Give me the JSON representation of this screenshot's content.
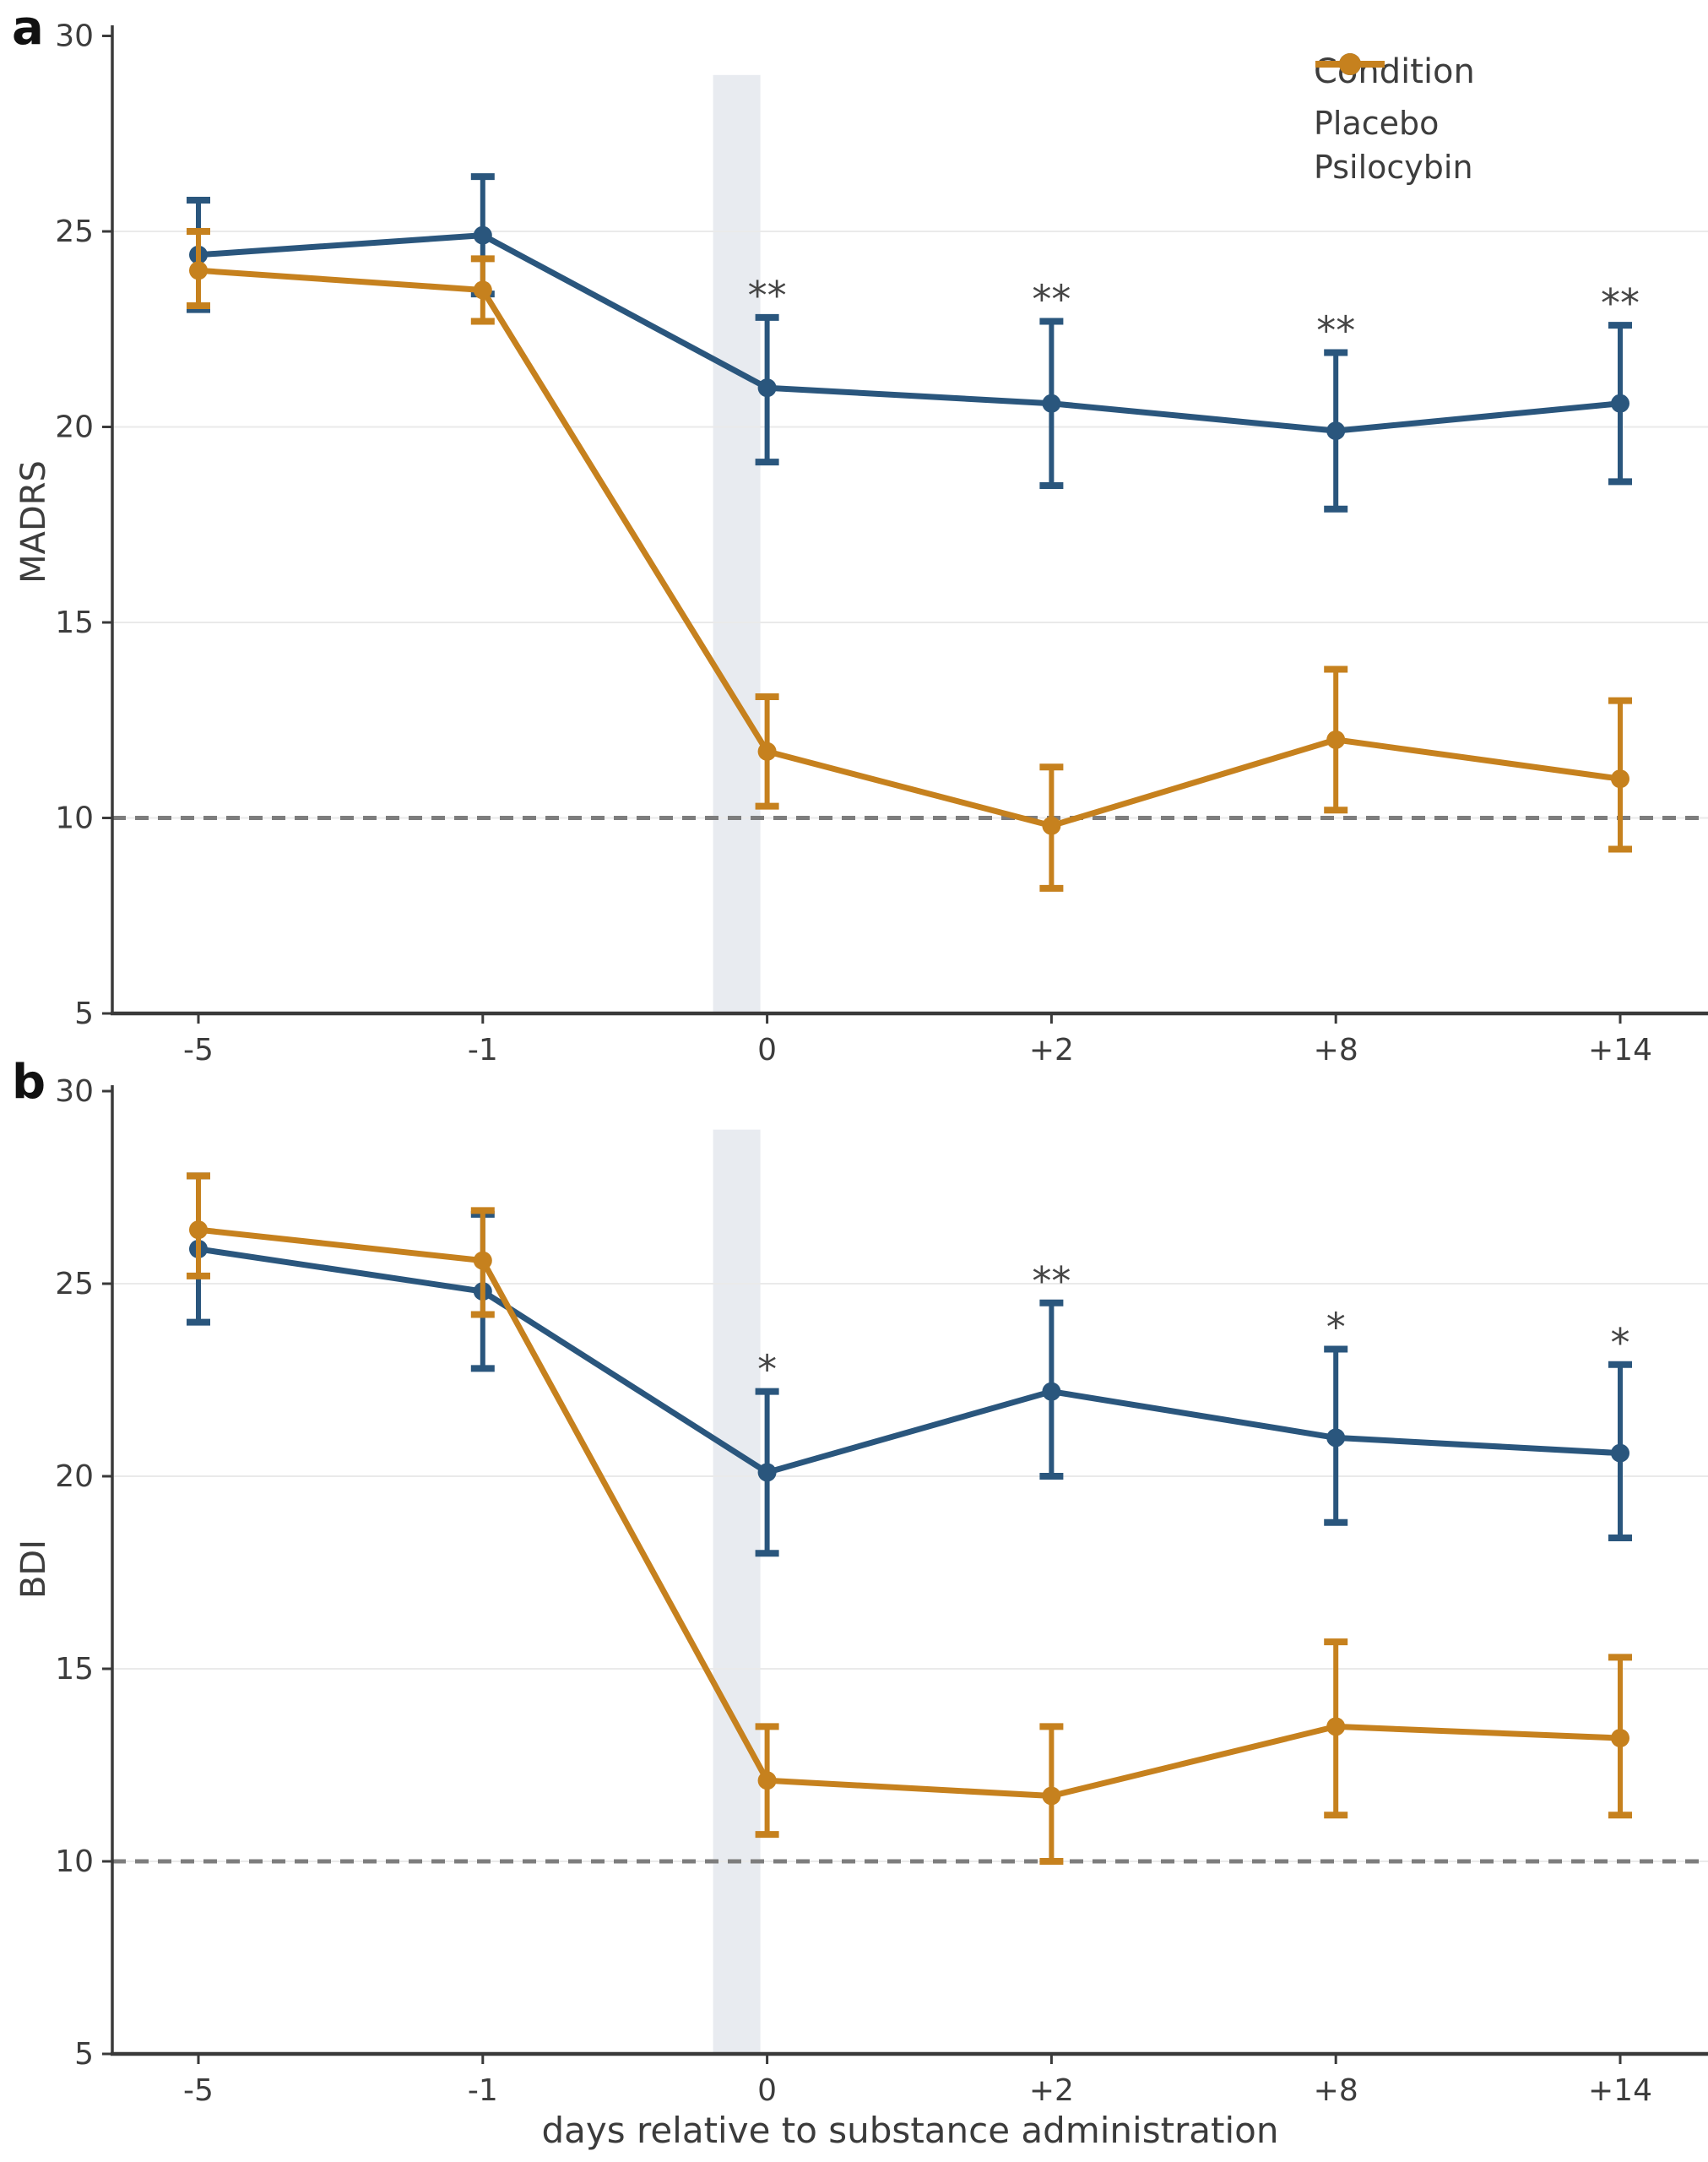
{
  "figure": {
    "panel_a_label": "a",
    "panel_b_label": "b"
  },
  "legend": {
    "title": "Condition",
    "items": [
      {
        "label": "Placebo"
      },
      {
        "label": "Psilocybin"
      }
    ]
  },
  "xaxis_title": "days relative to substance administration",
  "colors": {
    "placebo": "#2a567d",
    "psilocybin": "#c6811e",
    "admin_band": "#e8ebf0",
    "gridline": "#eaeaea",
    "reference_line": "#7d7d7d",
    "axis": "#3a3a3a",
    "tick_label": "#3d3d3d",
    "significance": "#454545"
  },
  "chart_data": [
    {
      "type": "line",
      "panel": "a",
      "ylabel": "MADRS",
      "xlabel": "",
      "categories": [
        "-5",
        "-1",
        "0",
        "+2",
        "+8",
        "+14"
      ],
      "ylim": [
        5,
        30
      ],
      "yticks": [
        30,
        25,
        20,
        15,
        10,
        5
      ],
      "gridlines_at": [
        25,
        20,
        15,
        10
      ],
      "reference_line_y": 10,
      "admin_band_before": "0",
      "legend_position": "top-right",
      "series": [
        {
          "name": "Placebo",
          "color": "#2a567d",
          "values": [
            24.4,
            24.9,
            21.0,
            20.6,
            19.9,
            20.6
          ],
          "ci_low": [
            23.0,
            23.4,
            19.1,
            18.5,
            17.9,
            18.6
          ],
          "ci_high": [
            25.8,
            26.4,
            22.8,
            22.7,
            21.9,
            22.6
          ]
        },
        {
          "name": "Psilocybin",
          "color": "#c6811e",
          "values": [
            24.0,
            23.5,
            11.7,
            9.8,
            12.0,
            11.0
          ],
          "ci_low": [
            23.1,
            22.7,
            10.3,
            8.2,
            10.2,
            9.2
          ],
          "ci_high": [
            25.0,
            24.3,
            13.1,
            11.3,
            13.8,
            13.0
          ]
        }
      ],
      "significance": [
        "",
        "",
        "**",
        "**",
        "**",
        "**"
      ]
    },
    {
      "type": "line",
      "panel": "b",
      "ylabel": "BDI",
      "xlabel": "days relative to substance administration",
      "categories": [
        "-5",
        "-1",
        "0",
        "+2",
        "+8",
        "+14"
      ],
      "ylim": [
        5,
        30
      ],
      "yticks": [
        30,
        25,
        20,
        15,
        10,
        5
      ],
      "gridlines_at": [
        25,
        20,
        15,
        10
      ],
      "reference_line_y": 10,
      "admin_band_before": "0",
      "series": [
        {
          "name": "Placebo",
          "color": "#2a567d",
          "values": [
            25.9,
            24.8,
            20.1,
            22.2,
            21.0,
            20.6
          ],
          "ci_low": [
            24.0,
            22.8,
            18.0,
            20.0,
            18.8,
            18.4
          ],
          "ci_high": [
            27.8,
            26.8,
            22.2,
            24.5,
            23.3,
            22.9
          ]
        },
        {
          "name": "Psilocybin",
          "color": "#c6811e",
          "values": [
            26.4,
            25.6,
            12.1,
            11.7,
            13.5,
            13.2
          ],
          "ci_low": [
            25.2,
            24.2,
            10.7,
            10.0,
            11.2,
            11.2
          ],
          "ci_high": [
            27.8,
            26.9,
            13.5,
            13.5,
            15.7,
            15.3
          ]
        }
      ],
      "significance": [
        "",
        "",
        "*",
        "**",
        "*",
        "*"
      ]
    }
  ]
}
